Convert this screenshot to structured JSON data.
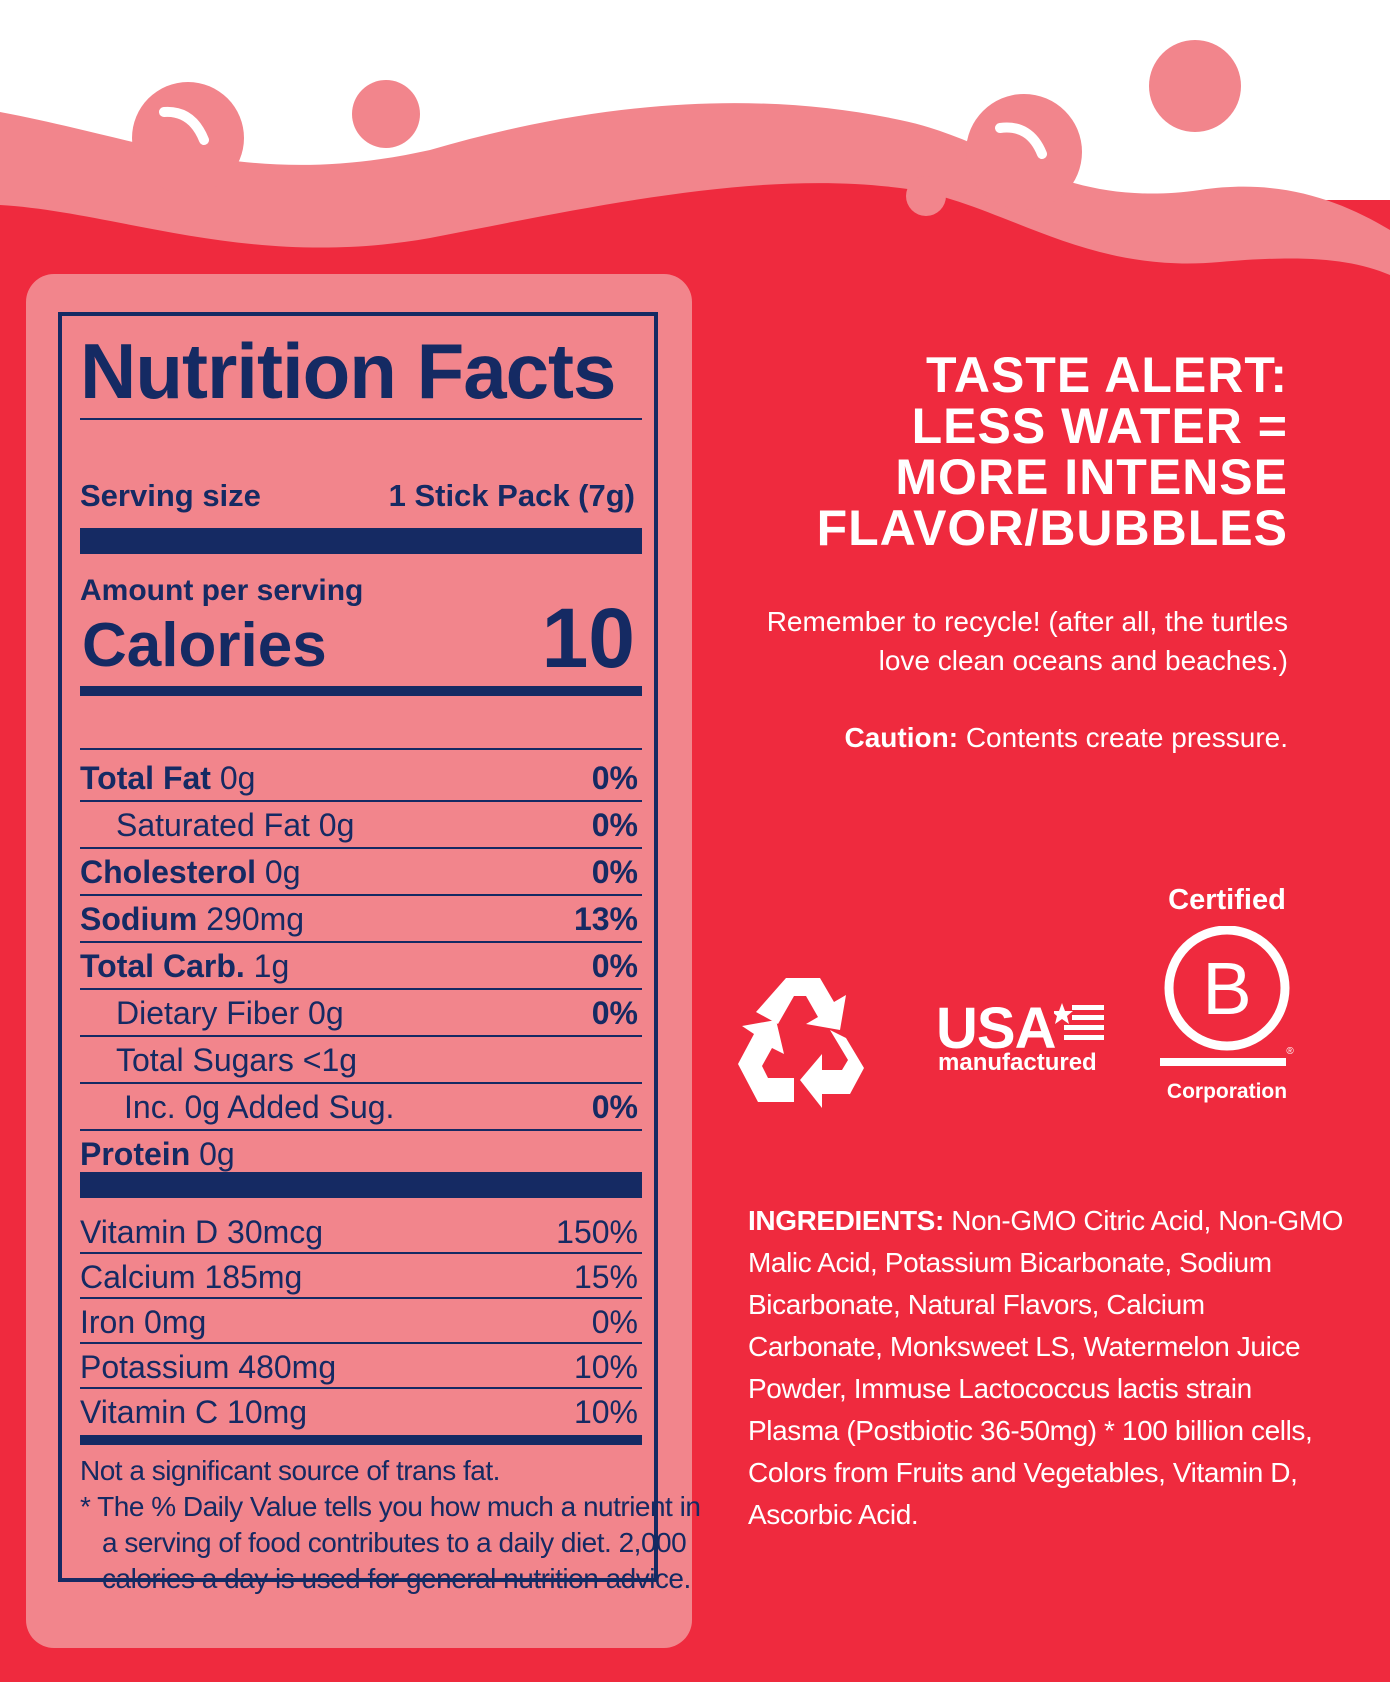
{
  "colors": {
    "background_red": "#ef2a3e",
    "wave_pink": "#f2858c",
    "label_pink": "#f2858c",
    "navy": "#152a63",
    "white": "#ffffff"
  },
  "nutrition": {
    "title": "Nutrition Facts",
    "serving_size_label": "Serving size",
    "serving_size_value": "1 Stick Pack (7g)",
    "amount_per_serving": "Amount per serving",
    "calories_label": "Calories",
    "calories_value": "10",
    "nutrients": [
      {
        "name": "Total Fat",
        "amount": "0g",
        "dv": "0%"
      },
      {
        "name": "Saturated Fat 0g",
        "amount": "",
        "dv": "0%"
      },
      {
        "name": "Cholesterol",
        "amount": "0g",
        "dv": "0%"
      },
      {
        "name": "Sodium",
        "amount": "290mg",
        "dv": "13%"
      },
      {
        "name": "Total Carb.",
        "amount": "1g",
        "dv": "0%"
      },
      {
        "name": "Dietary Fiber 0g",
        "amount": "",
        "dv": "0%"
      },
      {
        "name": "Total Sugars <1g",
        "amount": "",
        "dv": ""
      },
      {
        "name": "Inc. 0g Added Sug.",
        "amount": "",
        "dv": "0%"
      },
      {
        "name": "Protein",
        "amount": "0g",
        "dv": ""
      }
    ],
    "vitamins": [
      {
        "name": "Vitamin D 30mcg",
        "dv": "150%"
      },
      {
        "name": "Calcium 185mg",
        "dv": "15%"
      },
      {
        "name": "Iron 0mg",
        "dv": "0%"
      },
      {
        "name": "Potassium 480mg",
        "dv": "10%"
      },
      {
        "name": "Vitamin C 10mg",
        "dv": "10%"
      }
    ],
    "footnote": [
      "Not a significant source of trans fat.",
      "* The % Daily Value tells you how much a nutrient in",
      "a serving of food contributes to a daily diet. 2,000",
      "calories a day is used for general nutrition advice."
    ]
  },
  "taste_alert": [
    "TASTE ALERT:",
    "LESS WATER =",
    "MORE INTENSE",
    "FLAVOR/BUBBLES"
  ],
  "recycle_note": [
    "Remember to recycle! (after all, the turtles",
    "love clean oceans and beaches.)"
  ],
  "caution": {
    "label": "Caution:",
    "text": " Contents create pressure."
  },
  "badges": {
    "recycle_icon": "recycle-icon",
    "usa_text": "USA",
    "usa_sub": "manufactured",
    "bcorp_top": "Certified",
    "bcorp_letter": "B",
    "bcorp_registered": "®",
    "bcorp_bottom": "Corporation"
  },
  "ingredients": {
    "label": "INGREDIENTS:",
    "lines": [
      " Non-GMO Citric Acid, Non-GMO",
      "Malic Acid, Potassium Bicarbonate, Sodium",
      "Bicarbonate, Natural Flavors, Calcium",
      "Carbonate, Monksweet LS, Watermelon Juice",
      "Powder, Immuse Lactococcus lactis strain",
      "Plasma (Postbiotic 36-50mg) * 100 billion cells,",
      "Colors from Fruits and Vegetables, Vitamin D,",
      "Ascorbic Acid."
    ]
  }
}
